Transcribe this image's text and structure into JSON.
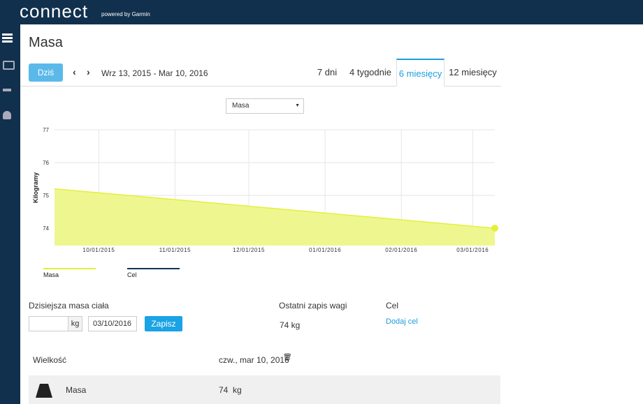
{
  "header": {
    "logo": "connect",
    "powered": "powered by Garmin"
  },
  "page": {
    "title": "Masa",
    "today_button": "Dziś",
    "date_range": "Wrz 13, 2015 - Mar 10, 2016",
    "tabs": [
      "7 dni",
      "4 tygodnie",
      "6 miesięcy",
      "12 miesięcy"
    ],
    "active_tab": 2,
    "dropdown": "Masa"
  },
  "chart_data": {
    "type": "area",
    "y_label": "Kilogramy",
    "x": [
      "2015-09-13",
      "2016-03-10"
    ],
    "xlim": [
      "2015-09-13",
      "2016-03-10"
    ],
    "xticks": [
      {
        "value": "2015-10-01",
        "label": "10/01/2015"
      },
      {
        "value": "2015-11-01",
        "label": "11/01/2015"
      },
      {
        "value": "2015-12-01",
        "label": "12/01/2015"
      },
      {
        "value": "2016-01-01",
        "label": "01/01/2016"
      },
      {
        "value": "2016-02-01",
        "label": "02/01/2016"
      },
      {
        "value": "2016-03-01",
        "label": "03/01/2016"
      }
    ],
    "ylim": [
      73.47,
      77
    ],
    "yticks": [
      74,
      75,
      76,
      77
    ],
    "grid": true,
    "series": [
      {
        "name": "Masa",
        "color": "#e4ef3a",
        "fill": "#eef78f",
        "values": [
          75.2,
          74.0
        ]
      },
      {
        "name": "Cel",
        "color": "#123456",
        "values": [
          null,
          null
        ]
      }
    ]
  },
  "form": {
    "label": "Dzisiejsza masa ciała",
    "unit": "kg",
    "date": "03/10/2016",
    "save": "Zapisz",
    "last_label": "Ostatni zapis wagi",
    "last_value": "74 kg",
    "goal_label": "Cel",
    "goal_link": "Dodaj cel"
  },
  "table": {
    "header": [
      "Wielkość",
      "czw., mar 10, 2016"
    ],
    "rows": [
      [
        "Masa",
        "74  kg"
      ]
    ]
  }
}
